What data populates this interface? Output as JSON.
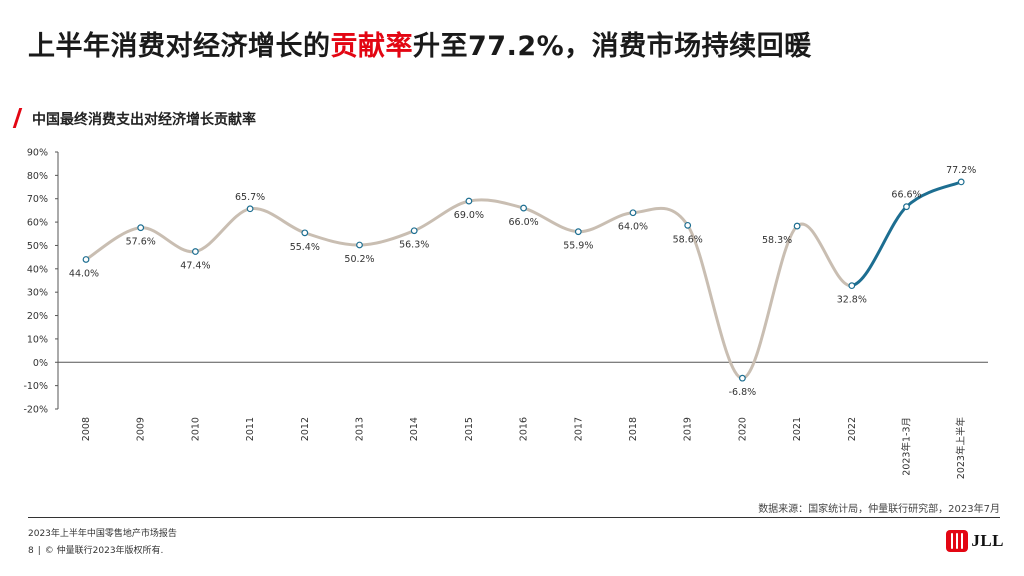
{
  "header": {
    "title_pre": "上半年消费对经济增长的",
    "title_highlight": "贡献率",
    "title_post": "升至77.2%，消费市场持续回暖",
    "subtitle": "中国最终消费支出对经济增长贡献率"
  },
  "colors": {
    "highlight": "#e30613",
    "line_history": "#c9beb2",
    "line_recent": "#1d6e91",
    "marker_stroke": "#1d6e91"
  },
  "chart_data": {
    "type": "line",
    "categories": [
      "2008",
      "2009",
      "2010",
      "2011",
      "2012",
      "2013",
      "2014",
      "2015",
      "2016",
      "2017",
      "2018",
      "2019",
      "2020",
      "2021",
      "2022",
      "2023年1-3月",
      "2023年上半年"
    ],
    "values": [
      44.0,
      57.6,
      47.4,
      65.7,
      55.4,
      50.2,
      56.3,
      69.0,
      66.0,
      55.9,
      64.0,
      58.6,
      -6.8,
      58.3,
      32.8,
      66.6,
      77.2
    ],
    "data_labels": [
      "44.0%",
      "57.6%",
      "47.4%",
      "65.7%",
      "55.4%",
      "50.2%",
      "56.3%",
      "69.0%",
      "66.0%",
      "55.9%",
      "64.0%",
      "58.6%",
      "-6.8%",
      "58.3%",
      "32.8%",
      "66.6%",
      "77.2%"
    ],
    "y_ticks": [
      "90%",
      "80%",
      "70%",
      "60%",
      "50%",
      "40%",
      "30%",
      "20%",
      "10%",
      "0%",
      "-10%",
      "-20%"
    ],
    "ylim": [
      -20,
      90
    ],
    "highlight_from_index": 14,
    "grid": false
  },
  "footer": {
    "source": "数据来源：国家统计局，仲量联行研究部，2023年7月",
    "report": "2023年上半年中国零售地产市场报告",
    "page_number": "8",
    "copyright": "© 仲量联行2023年版权所有.",
    "logo_text": "JLL"
  }
}
